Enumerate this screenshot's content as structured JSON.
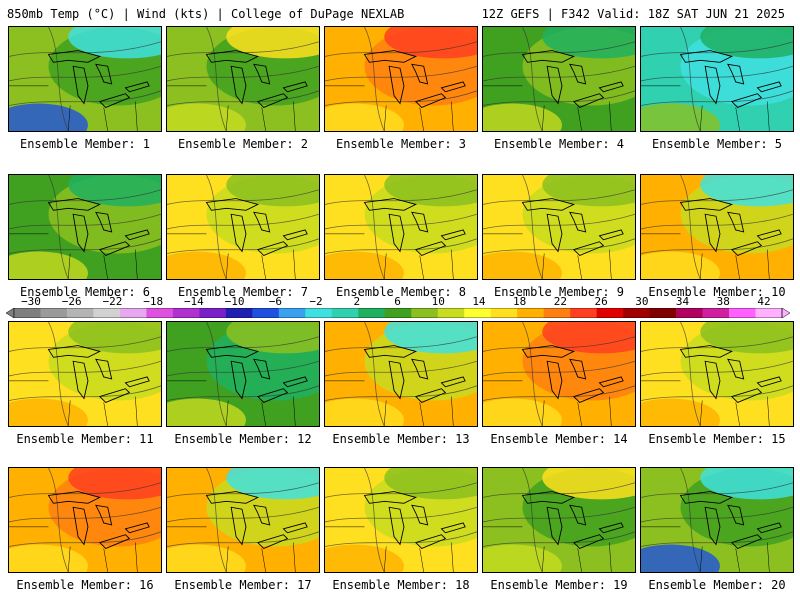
{
  "header": {
    "left_title": "850mb Temp (°C) | Wind (kts) | College of DuPage NEXLAB",
    "right_title": "12Z GEFS | F342 Valid: 18Z SAT JUN 21 2025"
  },
  "colorbar": {
    "labels": [
      "−30",
      "−26",
      "−22",
      "−18",
      "−14",
      "−10",
      "−6",
      "−2",
      "2",
      "6",
      "10",
      "14",
      "18",
      "22",
      "26",
      "30",
      "34",
      "38",
      "42"
    ],
    "colors": [
      "#7f7f7f",
      "#9a9a9a",
      "#b4b4b4",
      "#d2d2d2",
      "#e6a8ee",
      "#e050e0",
      "#b030d0",
      "#7a20c8",
      "#2020b0",
      "#1f50e0",
      "#3aa0f0",
      "#40e0e0",
      "#30d0b0",
      "#20b060",
      "#40a020",
      "#8cc020",
      "#c8dc20",
      "#ffff30",
      "#ffe020",
      "#ffb000",
      "#ff8010",
      "#ff4020",
      "#e00000",
      "#a00000",
      "#800000",
      "#b00060",
      "#d020a0",
      "#ff60ff",
      "#ffb0ff"
    ]
  },
  "members": [
    {
      "label": "Ensemble Member: 1",
      "style": "cool_north"
    },
    {
      "label": "Ensemble Member: 2",
      "style": "green_mix"
    },
    {
      "label": "Ensemble Member: 3",
      "style": "hot"
    },
    {
      "label": "Ensemble Member: 4",
      "style": "green"
    },
    {
      "label": "Ensemble Member: 5",
      "style": "cool"
    },
    {
      "label": "Ensemble Member: 6",
      "style": "green"
    },
    {
      "label": "Ensemble Member: 7",
      "style": "warm_green"
    },
    {
      "label": "Ensemble Member: 8",
      "style": "warm_green"
    },
    {
      "label": "Ensemble Member: 9",
      "style": "warm_green"
    },
    {
      "label": "Ensemble Member: 10",
      "style": "warm_cyan"
    },
    {
      "label": "Ensemble Member: 11",
      "style": "warm_green"
    },
    {
      "label": "Ensemble Member: 12",
      "style": "green_low"
    },
    {
      "label": "Ensemble Member: 13",
      "style": "warm_cyan"
    },
    {
      "label": "Ensemble Member: 14",
      "style": "hot"
    },
    {
      "label": "Ensemble Member: 15",
      "style": "warm_green"
    },
    {
      "label": "Ensemble Member: 16",
      "style": "hot"
    },
    {
      "label": "Ensemble Member: 17",
      "style": "warm_cyan"
    },
    {
      "label": "Ensemble Member: 18",
      "style": "warm_green"
    },
    {
      "label": "Ensemble Member: 19",
      "style": "green_mix"
    },
    {
      "label": "Ensemble Member: 20",
      "style": "cool_north"
    }
  ]
}
